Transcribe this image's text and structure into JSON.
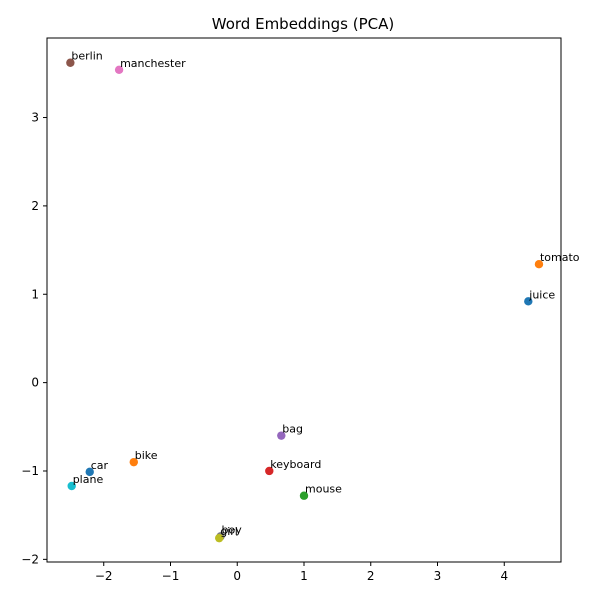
{
  "chart_data": {
    "type": "scatter",
    "title": "Word Embeddings (PCA)",
    "xlabel": "",
    "ylabel": "",
    "xlim": [
      -2.85,
      4.85
    ],
    "ylim": [
      -2.03,
      3.9
    ],
    "xticks": [
      {
        "value": -2,
        "label": "−2"
      },
      {
        "value": -1,
        "label": "−1"
      },
      {
        "value": 0,
        "label": "0"
      },
      {
        "value": 1,
        "label": "1"
      },
      {
        "value": 2,
        "label": "2"
      },
      {
        "value": 3,
        "label": "3"
      },
      {
        "value": 4,
        "label": "4"
      }
    ],
    "yticks": [
      {
        "value": -2,
        "label": "−2"
      },
      {
        "value": -1,
        "label": "−1"
      },
      {
        "value": 0,
        "label": "0"
      },
      {
        "value": 1,
        "label": "1"
      },
      {
        "value": 2,
        "label": "2"
      },
      {
        "value": 3,
        "label": "3"
      }
    ],
    "grid": false,
    "points": [
      {
        "label": "juice",
        "x": 4.36,
        "y": 0.92,
        "color": "#1f77b4"
      },
      {
        "label": "tomato",
        "x": 4.52,
        "y": 1.34,
        "color": "#ff7f0e"
      },
      {
        "label": "mouse",
        "x": 1.0,
        "y": -1.28,
        "color": "#2ca02c"
      },
      {
        "label": "keyboard",
        "x": 0.48,
        "y": -1.0,
        "color": "#d62728"
      },
      {
        "label": "bag",
        "x": 0.66,
        "y": -0.6,
        "color": "#9467bd"
      },
      {
        "label": "berlin",
        "x": -2.5,
        "y": 3.62,
        "color": "#8c564b"
      },
      {
        "label": "manchester",
        "x": -1.77,
        "y": 3.54,
        "color": "#e377c2"
      },
      {
        "label": "boy",
        "x": -0.25,
        "y": -1.74,
        "color": "#7f7f7f"
      },
      {
        "label": "girl",
        "x": -0.27,
        "y": -1.76,
        "color": "#bcbd22"
      },
      {
        "label": "plane",
        "x": -2.48,
        "y": -1.17,
        "color": "#17becf"
      },
      {
        "label": "car",
        "x": -2.21,
        "y": -1.01,
        "color": "#1f77b4"
      },
      {
        "label": "bike",
        "x": -1.55,
        "y": -0.9,
        "color": "#ff7f0e"
      }
    ]
  }
}
